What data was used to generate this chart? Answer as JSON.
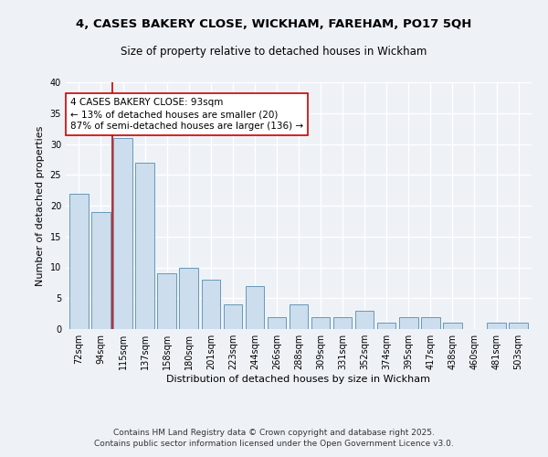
{
  "title": "4, CASES BAKERY CLOSE, WICKHAM, FAREHAM, PO17 5QH",
  "subtitle": "Size of property relative to detached houses in Wickham",
  "xlabel": "Distribution of detached houses by size in Wickham",
  "ylabel": "Number of detached properties",
  "categories": [
    "72sqm",
    "94sqm",
    "115sqm",
    "137sqm",
    "158sqm",
    "180sqm",
    "201sqm",
    "223sqm",
    "244sqm",
    "266sqm",
    "288sqm",
    "309sqm",
    "331sqm",
    "352sqm",
    "374sqm",
    "395sqm",
    "417sqm",
    "438sqm",
    "460sqm",
    "481sqm",
    "503sqm"
  ],
  "values": [
    22,
    19,
    31,
    27,
    9,
    10,
    8,
    4,
    7,
    2,
    4,
    2,
    2,
    3,
    1,
    2,
    2,
    1,
    0,
    1,
    1
  ],
  "bar_color": "#ccdded",
  "bar_edge_color": "#6699bb",
  "vline_x": 1.5,
  "vline_color": "#cc0000",
  "annotation_text": "4 CASES BAKERY CLOSE: 93sqm\n← 13% of detached houses are smaller (20)\n87% of semi-detached houses are larger (136) →",
  "annotation_box_color": "#cc0000",
  "ylim": [
    0,
    38
  ],
  "yticks": [
    0,
    5,
    10,
    15,
    20,
    25,
    30,
    35,
    40
  ],
  "footer": "Contains HM Land Registry data © Crown copyright and database right 2025.\nContains public sector information licensed under the Open Government Licence v3.0.",
  "bg_color": "#eef2f7",
  "plot_bg_color": "#eef2f7",
  "grid_color": "#ffffff",
  "title_fontsize": 9.5,
  "subtitle_fontsize": 8.5,
  "axis_label_fontsize": 8,
  "tick_fontsize": 7,
  "annotation_fontsize": 7.5,
  "footer_fontsize": 6.5
}
